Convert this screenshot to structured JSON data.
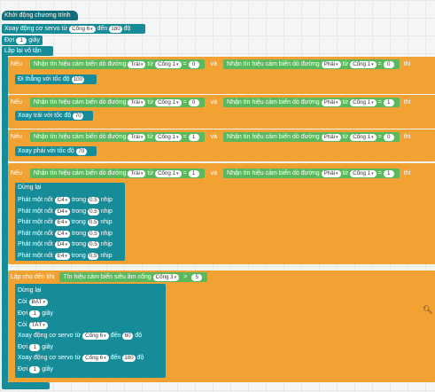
{
  "start": "Khởi động chương trình",
  "servo1": {
    "label": "Xoay động cơ servo từ",
    "port": "Cổng 6",
    "to": "đến",
    "deg": "180",
    "unit": "độ"
  },
  "wait1": {
    "label": "Đợi",
    "n": "1",
    "unit": "giây"
  },
  "loop": "Lặp lại vô tận",
  "if_word": "Nếu",
  "then_word": "thì",
  "and_word": "và",
  "cond_label": "Nhận tín hiệu cảm biến dò đường",
  "from_word": "từ",
  "left": "Trái",
  "right": "Phải",
  "port1": "Cổng 1",
  "eq": "=",
  "v0": "0",
  "v1": "1",
  "go_straight": {
    "label": "Đi thẳng với tốc độ",
    "speed": "100"
  },
  "turn_left": {
    "label": "Xoay trái với tốc độ",
    "speed": "70"
  },
  "turn_right": {
    "label": "Xoay phải với tốc độ",
    "speed": "70"
  },
  "stop": "Dừng lại",
  "note_label": "Phát một nốt",
  "note_in": "trong",
  "note_beat": "0.5",
  "note_unit": "nhịp",
  "notes": [
    "C4",
    "D4",
    "E4",
    "C4",
    "D4",
    "E4"
  ],
  "repeat_until": "Lặp cho đến khi",
  "sonar": {
    "label": "Tín hiệu cảm biến siêu âm cổng",
    "port": "Cổng 3",
    "op": ">",
    "val": "5"
  },
  "stop2": "Dừng lại",
  "bell_on": {
    "label": "Còi",
    "state": "BẬT"
  },
  "wait2": {
    "label": "Đợi",
    "n": "1",
    "unit": "giây"
  },
  "bell_off": {
    "label": "Còi",
    "state": "TẮT"
  },
  "servo2": {
    "label": "Xoay động cơ servo từ",
    "port": "Cổng 6",
    "to": "đến",
    "deg": "60",
    "unit": "độ"
  },
  "wait3": {
    "label": "Đợi",
    "n": "1",
    "unit": "giây"
  },
  "servo3": {
    "label": "Xoay động cơ servo từ",
    "port": "Cổng 6",
    "to": "đến",
    "deg": "180",
    "unit": "độ"
  },
  "wait4": {
    "label": "Đợi",
    "n": "1",
    "unit": "giây"
  },
  "zoom_icon": "magnifier-icon",
  "colors": {
    "teal": "#178c99",
    "orange": "#f2a133",
    "green": "#5cb85c"
  }
}
